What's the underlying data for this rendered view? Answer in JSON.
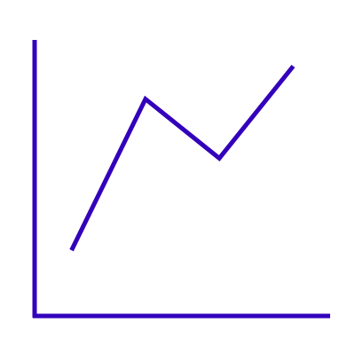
{
  "accent_color": "#3300bb",
  "chart_data": {
    "type": "line",
    "title": "",
    "xlabel": "",
    "ylabel": "",
    "grid": false,
    "legend": "none",
    "x": [
      1,
      2,
      3,
      4
    ],
    "y": [
      1,
      3.3,
      2.4,
      3.8
    ],
    "xlim": [
      0.5,
      4.5
    ],
    "ylim": [
      0,
      4.2
    ],
    "series": [
      {
        "values": [
          1,
          3.3,
          2.4,
          3.8
        ]
      }
    ]
  }
}
